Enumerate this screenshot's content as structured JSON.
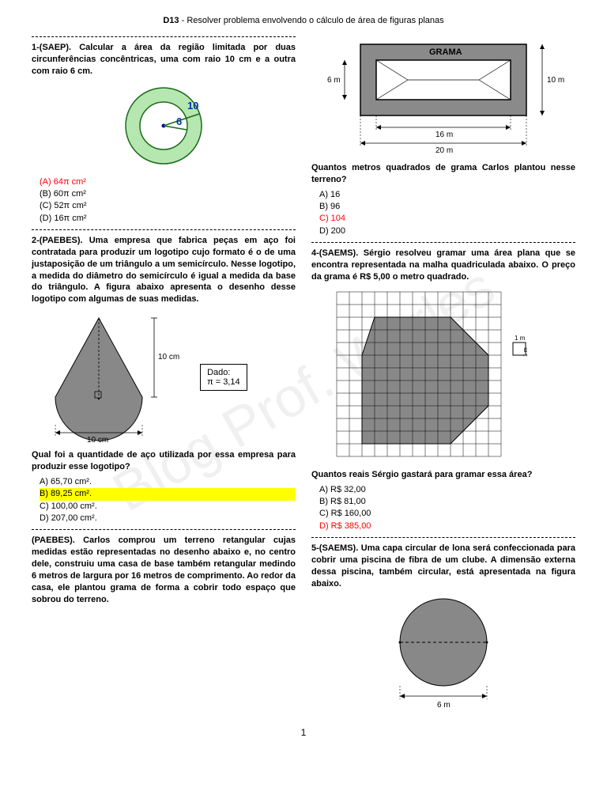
{
  "header": {
    "code": "D13",
    "title": " - Resolver problema envolvendo o cálculo de área de figuras planas"
  },
  "watermark": "Blog Prof. Warles",
  "pagenum": "1",
  "q1": {
    "text": "1-(SAEP). Calcular a área da região limitada por duas circunferências concêntricas, uma com raio 10 cm e a outra com raio 6 cm.",
    "fig": {
      "outer_r": 48,
      "inner_r": 30,
      "outer_fill": "#b6e7b0",
      "inner_fill": "#ffffff",
      "stroke": "#1a6b1a",
      "center": "#0000aa",
      "label10": "10",
      "label6": "6"
    },
    "opts": [
      {
        "t": "(A) 64π cm²",
        "cls": "red"
      },
      {
        "t": "(B) 60π cm²"
      },
      {
        "t": "(C) 52π cm²"
      },
      {
        "t": "(D) 16π cm²"
      }
    ]
  },
  "q2": {
    "text": "2-(PAEBES). Uma empresa que fabrica peças em aço foi contratada para produzir um logotipo cujo formato é o de uma justaposição de um triângulo a um semicírculo. Nesse logotipo, a medida do diâmetro do semicírculo é igual a medida da base do triângulo. A figura abaixo apresenta o desenho desse logotipo com algumas de suas medidas.",
    "fig": {
      "fill": "#888888",
      "stroke": "#000000",
      "height_label": "10 cm",
      "base_label": "10 cm",
      "dado_label": "Dado:",
      "dado_value": "π = 3,14"
    },
    "prompt": "Qual foi a quantidade de aço utilizada por essa empresa para produzir esse logotipo?",
    "opts": [
      {
        "t": "A) 65,70 cm²."
      },
      {
        "t": "B) 89,25 cm².",
        "cls": "hl"
      },
      {
        "t": "C) 100,00 cm²."
      },
      {
        "t": "D) 207,00 cm²."
      }
    ]
  },
  "q3a": {
    "text": "(PAEBES). Carlos comprou um terreno retangular cujas medidas estão representadas no desenho abaixo e, no centro dele, construiu uma casa de base também retangular medindo 6 metros de largura por 16 metros de comprimento. Ao redor da casa, ele plantou grama de forma a cobrir todo espaço que sobrou do terreno."
  },
  "q3b": {
    "fig": {
      "grass_fill": "#8a8a8a",
      "house_fill": "#ffffff",
      "stroke": "#000000",
      "title": "GRAMA",
      "h_inner": "6 m",
      "h_outer": "10 m",
      "w_inner": "16 m",
      "w_outer": "20 m"
    },
    "prompt": "Quantos metros quadrados de grama Carlos plantou nesse terreno?",
    "opts": [
      {
        "t": "A) 16"
      },
      {
        "t": "B) 96"
      },
      {
        "t": "C) 104",
        "cls": "red"
      },
      {
        "t": "D) 200"
      }
    ]
  },
  "q4": {
    "text": "4-(SAEMS). Sérgio resolveu gramar uma área plana que se encontra representada na malha quadriculada abaixo. O preço da grama é R$ 5,00 o metro quadrado.",
    "fig": {
      "grid_n": 13,
      "cell": 16,
      "fill": "#888888",
      "grid_color": "#000000",
      "legend_label": "1 m",
      "poly": [
        [
          3,
          2
        ],
        [
          9,
          2
        ],
        [
          12,
          5
        ],
        [
          12,
          9
        ],
        [
          9,
          12
        ],
        [
          2,
          12
        ],
        [
          2,
          5
        ]
      ]
    },
    "prompt": "Quantos reais Sérgio gastará para gramar essa área?",
    "opts": [
      {
        "t": "A) R$ 32,00"
      },
      {
        "t": "B) R$ 81,00"
      },
      {
        "t": "C) R$ 160,00"
      },
      {
        "t": "D) R$ 385,00",
        "cls": "red"
      }
    ]
  },
  "q5": {
    "text": "5-(SAEMS). Uma capa circular de lona será confeccionada para cobrir uma piscina de fibra de um clube. A dimensão externa dessa piscina, também circular, está apresentada na figura abaixo.",
    "fig": {
      "fill": "#888888",
      "stroke": "#000000",
      "diam_label": "6 m"
    }
  }
}
